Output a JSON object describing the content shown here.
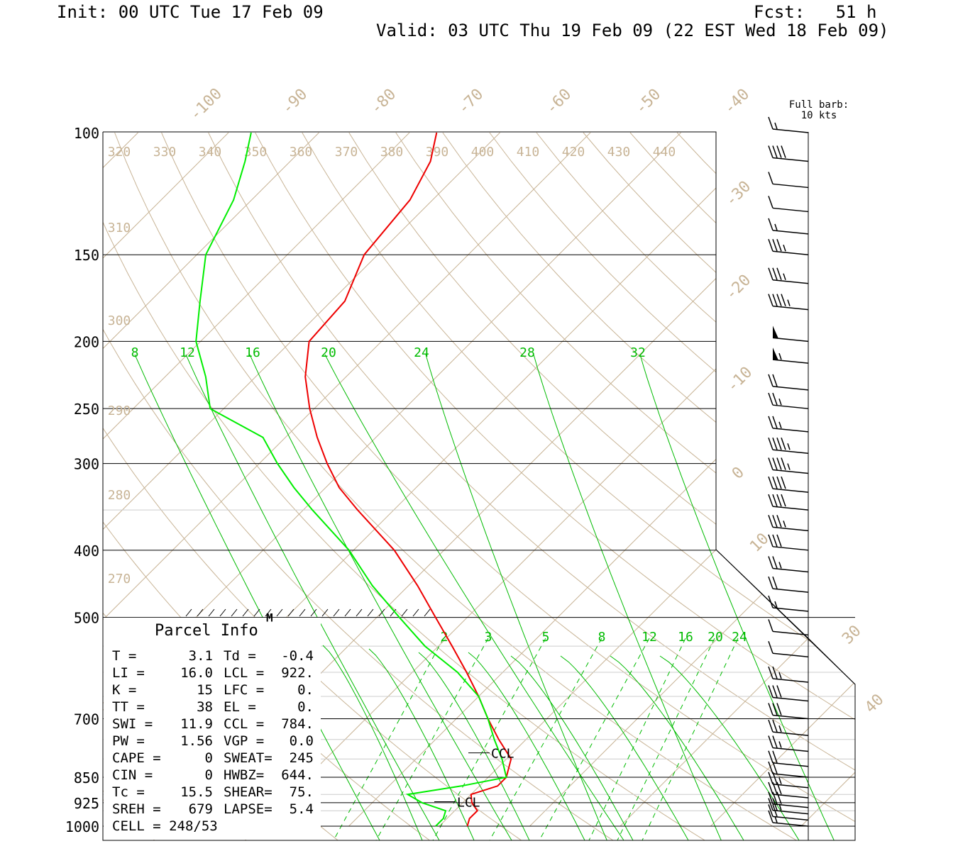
{
  "header": {
    "init": "Init: 00 UTC Tue 17 Feb 09",
    "fcst": "Fcst:   51 h",
    "valid": "Valid: 03 UTC Thu 19 Feb 09 (22 EST Wed 18 Feb 09)"
  },
  "barb_legend": {
    "line1": "Full barb:",
    "line2": "10 kts"
  },
  "colors": {
    "temperature": "#ee0000",
    "dewpoint": "#00ee00",
    "mixing_ratio": "#00bb00",
    "isotherm": "#c8b496",
    "frame": "#000000"
  },
  "chart_data": {
    "type": "line",
    "title": "",
    "xlabel": "",
    "ylabel": "",
    "y_scale": "log pressure (hPa)",
    "ylim": [
      1000,
      100
    ],
    "pressure_ticks": [
      "100",
      "150",
      "200",
      "250",
      "300",
      "400",
      "500",
      "700",
      "850",
      "925",
      "1000"
    ],
    "isotherm_labels": [
      "-100",
      "-90",
      "-80",
      "-70",
      "-60",
      "-50",
      "-40",
      "-30",
      "-20",
      "-10",
      "0",
      "10",
      "30",
      "40"
    ],
    "theta_labels_top": [
      "320",
      "330",
      "340",
      "350",
      "360",
      "370",
      "380",
      "390",
      "400",
      "410",
      "420",
      "430",
      "440"
    ],
    "theta_labels_left": [
      "310",
      "300",
      "290",
      "280",
      "270"
    ],
    "mixing_ratio_upper": [
      "8",
      "12",
      "16",
      "20",
      "24",
      "28",
      "32"
    ],
    "mixing_ratio_lower": [
      "2",
      "3",
      "5",
      "8",
      "12",
      "16",
      "20",
      "24"
    ],
    "level_markers": [
      {
        "label": "CCL",
        "p": 784
      },
      {
        "label": "LCL",
        "p": 922
      },
      {
        "label": "M",
        "p": 500
      }
    ],
    "series": [
      {
        "key": "temperature",
        "p": [
          1000,
          975,
          950,
          925,
          900,
          875,
          850,
          800,
          750,
          700,
          650,
          600,
          550,
          500,
          450,
          400,
          350,
          325,
          300,
          275,
          250,
          225,
          200,
          175,
          150,
          125,
          110,
          100
        ],
        "t": [
          3.1,
          2.5,
          2.5,
          1.0,
          0.0,
          2.0,
          2.0,
          0.5,
          -3.0,
          -6.5,
          -10.0,
          -14.0,
          -18.5,
          -23.5,
          -29.0,
          -35.5,
          -44.0,
          -48.5,
          -52.5,
          -56.5,
          -60.5,
          -64.5,
          -68.0,
          -68.5,
          -71.5,
          -72.5,
          -74.5,
          -77.0
        ]
      },
      {
        "key": "dewpoint",
        "p": [
          1000,
          975,
          950,
          925,
          900,
          875,
          850,
          800,
          750,
          700,
          650,
          600,
          550,
          500,
          450,
          400,
          350,
          325,
          300,
          275,
          250,
          225,
          200,
          175,
          150,
          125,
          110,
          100
        ],
        "t": [
          -0.4,
          -0.4,
          -1.0,
          -4.5,
          -7.0,
          -2.0,
          2.0,
          -0.5,
          -3.5,
          -6.5,
          -10.0,
          -15.0,
          -21.5,
          -27.5,
          -34.0,
          -40.5,
          -49.0,
          -53.5,
          -58.0,
          -62.5,
          -71.5,
          -75.5,
          -80.5,
          -84.5,
          -89.0,
          -92.0,
          -95.0,
          -97.5
        ]
      }
    ],
    "winds": [
      {
        "p": 100,
        "spd": 15
      },
      {
        "p": 110,
        "spd": 40
      },
      {
        "p": 120,
        "spd": 10
      },
      {
        "p": 130,
        "spd": 10
      },
      {
        "p": 140,
        "spd": 15
      },
      {
        "p": 150,
        "spd": 35
      },
      {
        "p": 165,
        "spd": 35
      },
      {
        "p": 180,
        "spd": 45
      },
      {
        "p": 200,
        "spd": 50
      },
      {
        "p": 215,
        "spd": 55
      },
      {
        "p": 235,
        "spd": 20
      },
      {
        "p": 250,
        "spd": 25
      },
      {
        "p": 270,
        "spd": 25
      },
      {
        "p": 290,
        "spd": 45
      },
      {
        "p": 310,
        "spd": 45
      },
      {
        "p": 330,
        "spd": 40
      },
      {
        "p": 350,
        "spd": 40
      },
      {
        "p": 375,
        "spd": 35
      },
      {
        "p": 400,
        "spd": 30
      },
      {
        "p": 430,
        "spd": 25
      },
      {
        "p": 460,
        "spd": 20
      },
      {
        "p": 490,
        "spd": 15
      },
      {
        "p": 530,
        "spd": 10
      },
      {
        "p": 570,
        "spd": 10
      },
      {
        "p": 620,
        "spd": 25
      },
      {
        "p": 660,
        "spd": 30
      },
      {
        "p": 700,
        "spd": 30
      },
      {
        "p": 740,
        "spd": 25
      },
      {
        "p": 780,
        "spd": 25
      },
      {
        "p": 820,
        "spd": 20
      },
      {
        "p": 850,
        "spd": 20
      },
      {
        "p": 880,
        "spd": 25
      },
      {
        "p": 910,
        "spd": 30
      },
      {
        "p": 940,
        "spd": 30
      },
      {
        "p": 960,
        "spd": 25
      },
      {
        "p": 980,
        "spd": 20
      },
      {
        "p": 1000,
        "spd": 15
      }
    ]
  },
  "parcel": {
    "title": "Parcel Info",
    "rows": [
      [
        "T    =",
        "3.1",
        "Td  =",
        "-0.4"
      ],
      [
        "LI   =",
        "16.0",
        "LCL  =",
        "922."
      ],
      [
        "K    =",
        "15",
        "LFC  =",
        "0."
      ],
      [
        "TT   =",
        "38",
        "EL   =",
        "0."
      ],
      [
        "SWI  =",
        "11.9",
        "CCL  =",
        "784."
      ],
      [
        "PW   =",
        "1.56",
        "VGP  =",
        "0.0"
      ],
      [
        "CAPE =",
        "0",
        "SWEAT=",
        "245"
      ],
      [
        "CIN  =",
        "0",
        "HWBZ=",
        "644."
      ],
      [
        "Tc   =",
        "15.5",
        "SHEAR=",
        "75."
      ],
      [
        "SREH =",
        "679",
        "LAPSE=",
        "5.4"
      ],
      [
        "CELL = 248/53",
        "",
        "",
        ""
      ]
    ]
  }
}
